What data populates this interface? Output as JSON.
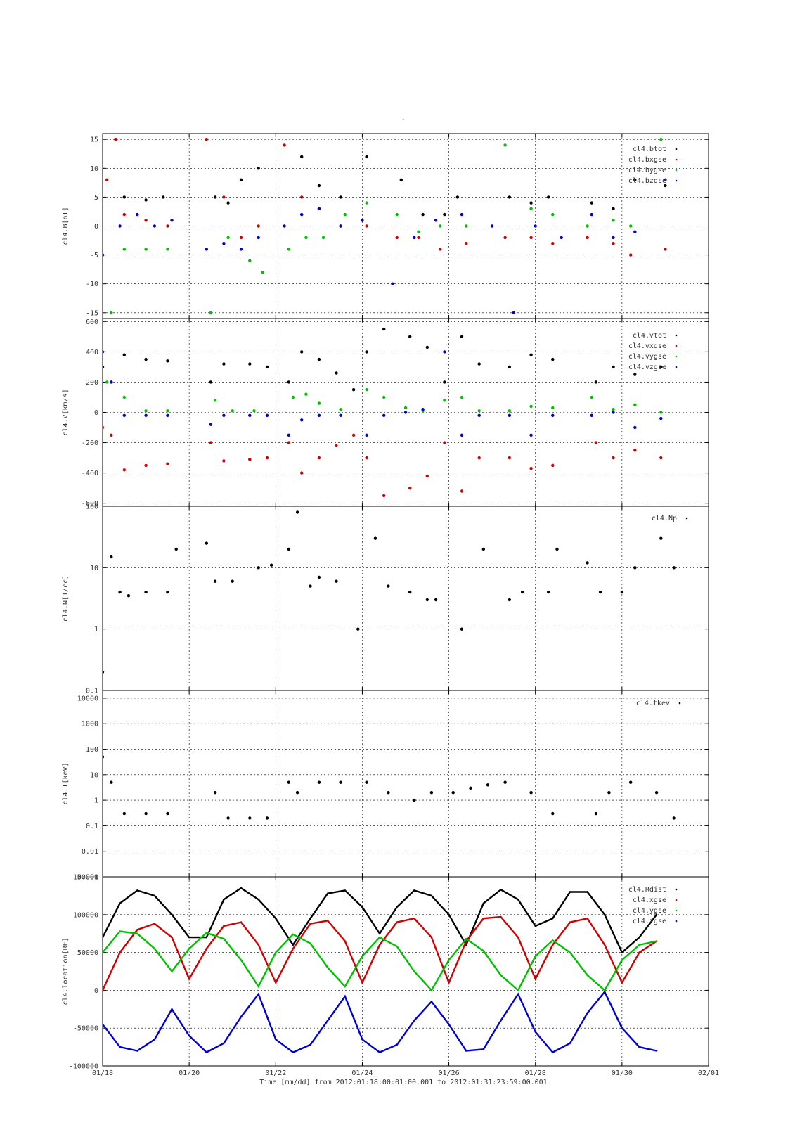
{
  "page": {
    "title_mark": "-"
  },
  "colors": {
    "black": "#000000",
    "red": "#d00000",
    "green": "#00c000",
    "blue": "#0000d0"
  },
  "time_axis": {
    "tick_labels": [
      "01/18",
      "01/20",
      "01/22",
      "01/24",
      "01/26",
      "01/28",
      "01/30",
      "02/01"
    ],
    "caption": "Time [mm/dd]  from 2012:01:18:00:01:00.001  to  2012:01:31:23:59:00.001"
  },
  "chart_data": [
    {
      "type": "scatter",
      "ylabel": "cl4.B[nT]",
      "ylim": [
        -16,
        16
      ],
      "yticks": [
        15,
        10,
        5,
        0,
        -5,
        -10,
        -15
      ],
      "ytick_labels": [
        "15",
        "10",
        "5",
        "0",
        "-5",
        "-10",
        "-15"
      ],
      "series": [
        {
          "name": "cl4.btot",
          "color": "#000000",
          "x": [
            0.3,
            0.5,
            1.0,
            1.4,
            2.6,
            2.9,
            3.2,
            3.6,
            4.6,
            5.0,
            5.5,
            6.1,
            6.9,
            7.4,
            7.9,
            8.2,
            9.4,
            9.9,
            10.3,
            11.3,
            11.8,
            12.3,
            13.0
          ],
          "y": [
            15,
            5,
            4.5,
            5,
            5,
            4,
            8,
            10,
            12,
            7,
            5,
            12,
            8,
            2,
            2,
            5,
            5,
            4,
            5,
            4,
            3,
            8,
            7
          ]
        },
        {
          "name": "cl4.bxgse",
          "color": "#d00000",
          "x": [
            0.1,
            0.3,
            0.5,
            1.0,
            1.5,
            2.4,
            2.8,
            3.2,
            3.6,
            4.2,
            4.6,
            5.0,
            5.5,
            6.1,
            6.8,
            7.3,
            7.8,
            8.4,
            9.3,
            9.9,
            10.4,
            11.2,
            11.8,
            12.2,
            13.0
          ],
          "y": [
            8,
            15,
            2,
            1,
            0,
            15,
            5,
            -2,
            0,
            14,
            5,
            3,
            0,
            0,
            -2,
            -2,
            -4,
            -3,
            -2,
            -2,
            -3,
            -2,
            -3,
            -5,
            -4
          ]
        },
        {
          "name": "cl4.bygse",
          "color": "#00c000",
          "x": [
            0.2,
            0.5,
            1.0,
            1.5,
            2.5,
            2.9,
            3.4,
            3.7,
            4.3,
            4.7,
            5.1,
            5.6,
            6.1,
            6.8,
            7.3,
            7.8,
            8.4,
            9.3,
            9.9,
            10.4,
            11.2,
            11.8,
            12.2,
            12.9
          ],
          "y": [
            -15,
            -4,
            -4,
            -4,
            -15,
            -2,
            -6,
            -8,
            -4,
            -2,
            -2,
            2,
            4,
            2,
            -1,
            0,
            0,
            14,
            3,
            2,
            0,
            1,
            0,
            15
          ]
        },
        {
          "name": "cl4.bzgse",
          "color": "#0000d0",
          "x": [
            0.0,
            0.4,
            0.8,
            1.2,
            1.6,
            2.4,
            2.8,
            3.2,
            3.6,
            4.2,
            4.6,
            5.0,
            5.5,
            6.0,
            6.7,
            7.2,
            7.7,
            8.3,
            9.0,
            9.5,
            10.0,
            10.6,
            11.3,
            11.8,
            12.3,
            13.0
          ],
          "y": [
            -5,
            0,
            2,
            0,
            1,
            -4,
            -3,
            -4,
            -2,
            0,
            2,
            3,
            0,
            1,
            -10,
            -2,
            1,
            2,
            0,
            -15,
            0,
            -2,
            2,
            -2,
            -1,
            8
          ]
        }
      ]
    },
    {
      "type": "scatter",
      "ylabel": "cl4.V[km/s]",
      "ylim": [
        -620,
        620
      ],
      "yticks": [
        600,
        400,
        200,
        0,
        -200,
        -400,
        -600
      ],
      "ytick_labels": [
        "600",
        "400",
        "200",
        "0",
        "-200",
        "-400",
        "-600"
      ],
      "series": [
        {
          "name": "cl4.vtot",
          "color": "#000000",
          "x": [
            0.0,
            0.2,
            0.5,
            1.0,
            1.5,
            2.5,
            2.8,
            3.4,
            3.8,
            4.3,
            4.6,
            5.0,
            5.4,
            5.8,
            6.1,
            6.5,
            7.1,
            7.5,
            7.9,
            8.3,
            8.7,
            9.4,
            9.9,
            10.4,
            11.4,
            11.8,
            12.3,
            12.9
          ],
          "y": [
            300,
            200,
            380,
            350,
            340,
            200,
            320,
            320,
            300,
            200,
            400,
            350,
            260,
            150,
            400,
            550,
            500,
            430,
            200,
            500,
            320,
            300,
            380,
            350,
            200,
            300,
            250,
            300
          ]
        },
        {
          "name": "cl4.vxgse",
          "color": "#d00000",
          "x": [
            0.0,
            0.2,
            0.5,
            1.0,
            1.5,
            2.5,
            2.8,
            3.4,
            3.8,
            4.3,
            4.6,
            5.0,
            5.4,
            5.8,
            6.1,
            6.5,
            7.1,
            7.5,
            7.9,
            8.3,
            8.7,
            9.4,
            9.9,
            10.4,
            11.4,
            11.8,
            12.3,
            12.9
          ],
          "y": [
            -100,
            -150,
            -380,
            -350,
            -340,
            -200,
            -320,
            -310,
            -300,
            -200,
            -400,
            -300,
            -220,
            -150,
            -300,
            -550,
            -500,
            -420,
            -200,
            -520,
            -300,
            -300,
            -370,
            -350,
            -200,
            -300,
            -250,
            -300
          ]
        },
        {
          "name": "cl4.vygse",
          "color": "#00c000",
          "x": [
            0.1,
            0.5,
            1.0,
            1.5,
            2.6,
            3.0,
            3.5,
            4.4,
            4.7,
            5.0,
            5.5,
            6.1,
            6.5,
            7.0,
            7.4,
            7.9,
            8.3,
            8.7,
            9.4,
            9.9,
            10.4,
            11.3,
            11.8,
            12.3,
            12.9
          ],
          "y": [
            200,
            100,
            10,
            10,
            80,
            10,
            10,
            100,
            120,
            60,
            20,
            150,
            100,
            30,
            10,
            80,
            100,
            10,
            10,
            40,
            30,
            100,
            20,
            50,
            0
          ]
        },
        {
          "name": "cl4.vzgse",
          "color": "#0000d0",
          "x": [
            0.0,
            0.2,
            0.5,
            1.0,
            1.5,
            2.5,
            2.8,
            3.4,
            3.8,
            4.3,
            4.6,
            5.0,
            5.5,
            6.1,
            6.5,
            7.0,
            7.4,
            7.9,
            8.3,
            8.7,
            9.4,
            9.9,
            10.4,
            11.3,
            11.8,
            12.3,
            12.9
          ],
          "y": [
            400,
            200,
            -20,
            -20,
            -20,
            -80,
            -20,
            -20,
            -20,
            -150,
            -50,
            -20,
            -20,
            -150,
            -20,
            0,
            20,
            400,
            -150,
            -20,
            -20,
            -150,
            -20,
            -20,
            0,
            -100,
            -40
          ]
        }
      ]
    },
    {
      "type": "scatter",
      "ylabel": "cl4.N[1/cc]",
      "yscale": "log",
      "ylim": [
        0.1,
        100
      ],
      "yticks": [
        100,
        10,
        1,
        0.1
      ],
      "ytick_labels": [
        "100",
        "10",
        "1",
        "0.1"
      ],
      "series": [
        {
          "name": "cl4.Np",
          "color": "#000000",
          "x": [
            0.0,
            0.2,
            0.4,
            0.6,
            1.0,
            1.5,
            1.7,
            2.4,
            2.6,
            3.0,
            3.6,
            3.9,
            4.3,
            4.5,
            4.8,
            5.0,
            5.4,
            5.9,
            6.3,
            6.6,
            7.1,
            7.5,
            7.7,
            8.3,
            8.8,
            9.4,
            9.7,
            10.3,
            10.5,
            11.2,
            11.5,
            12.0,
            12.3,
            12.9,
            13.2
          ],
          "y": [
            0.2,
            15,
            4,
            3.5,
            4,
            4,
            20,
            25,
            6,
            6,
            10,
            11,
            20,
            80,
            5,
            7,
            6,
            1,
            30,
            5,
            4,
            3,
            3,
            1,
            20,
            3,
            4,
            4,
            20,
            12,
            4,
            4,
            10,
            30,
            10
          ]
        }
      ]
    },
    {
      "type": "scatter",
      "ylabel": "cl4.T[keV]",
      "yscale": "log",
      "ylim": [
        0.001,
        20000
      ],
      "yticks": [
        10000,
        1000,
        100,
        10,
        1,
        0.1,
        0.01,
        0.001
      ],
      "ytick_labels": [
        "10000",
        "1000",
        "100",
        "10",
        "1",
        "0.1",
        "0.01",
        "0.001"
      ],
      "series": [
        {
          "name": "cl4.tkev",
          "color": "#000000",
          "x": [
            0.0,
            0.2,
            0.5,
            1.0,
            1.5,
            2.6,
            2.9,
            3.4,
            3.8,
            4.3,
            4.5,
            5.0,
            5.5,
            6.1,
            6.6,
            7.2,
            7.6,
            8.1,
            8.5,
            8.9,
            9.3,
            9.9,
            10.4,
            11.4,
            11.7,
            12.2,
            12.8,
            13.2
          ],
          "y": [
            50,
            5,
            0.3,
            0.3,
            0.3,
            2,
            0.2,
            0.2,
            0.2,
            5,
            2,
            5,
            5,
            5,
            2,
            1,
            2,
            2,
            3,
            4,
            5,
            2,
            0.3,
            0.3,
            2,
            5,
            2,
            0.2
          ]
        }
      ]
    },
    {
      "type": "line",
      "ylabel": "cl4.location[RE]",
      "ylim": [
        -100000,
        150000
      ],
      "yticks": [
        150000,
        100000,
        50000,
        0,
        -50000,
        -100000
      ],
      "ytick_labels": [
        "150000",
        "100000",
        "50000",
        "0",
        "-50000",
        "-100000"
      ],
      "series": [
        {
          "name": "cl4.Rdist",
          "color": "#000000",
          "x": [
            0.0,
            0.4,
            0.8,
            1.2,
            1.6,
            2.0,
            2.4,
            2.8,
            3.2,
            3.6,
            4.0,
            4.4,
            4.8,
            5.2,
            5.6,
            6.0,
            6.4,
            6.8,
            7.2,
            7.6,
            8.0,
            8.4,
            8.8,
            9.2,
            9.6,
            10.0,
            10.4,
            10.8,
            11.2,
            11.6,
            12.0,
            12.4,
            12.8
          ],
          "y": [
            70000,
            115000,
            132000,
            125000,
            100000,
            70000,
            70000,
            120000,
            135000,
            120000,
            95000,
            60000,
            95000,
            128000,
            132000,
            110000,
            75000,
            110000,
            132000,
            125000,
            100000,
            60000,
            115000,
            133000,
            120000,
            85000,
            95000,
            130000,
            130000,
            100000,
            50000,
            70000,
            100000
          ]
        },
        {
          "name": "cl4.xgse",
          "color": "#d00000",
          "x": [
            0.0,
            0.4,
            0.8,
            1.2,
            1.6,
            2.0,
            2.4,
            2.8,
            3.2,
            3.6,
            4.0,
            4.4,
            4.8,
            5.2,
            5.6,
            6.0,
            6.4,
            6.8,
            7.2,
            7.6,
            8.0,
            8.4,
            8.8,
            9.2,
            9.6,
            10.0,
            10.4,
            10.8,
            11.2,
            11.6,
            12.0,
            12.4,
            12.8
          ],
          "y": [
            0,
            50000,
            80000,
            88000,
            70000,
            15000,
            55000,
            85000,
            90000,
            60000,
            10000,
            55000,
            88000,
            92000,
            65000,
            10000,
            60000,
            90000,
            95000,
            70000,
            10000,
            65000,
            95000,
            97000,
            70000,
            15000,
            60000,
            90000,
            95000,
            60000,
            10000,
            50000,
            65000
          ]
        },
        {
          "name": "cl4.ygse",
          "color": "#00c000",
          "x": [
            0.0,
            0.4,
            0.8,
            1.2,
            1.6,
            2.0,
            2.4,
            2.8,
            3.2,
            3.6,
            4.0,
            4.4,
            4.8,
            5.2,
            5.6,
            6.0,
            6.4,
            6.8,
            7.2,
            7.6,
            8.0,
            8.4,
            8.8,
            9.2,
            9.6,
            10.0,
            10.4,
            10.8,
            11.2,
            11.6,
            12.0,
            12.4,
            12.8
          ],
          "y": [
            50000,
            78000,
            75000,
            55000,
            25000,
            55000,
            76000,
            68000,
            40000,
            5000,
            50000,
            74000,
            62000,
            30000,
            5000,
            45000,
            70000,
            58000,
            25000,
            0,
            40000,
            68000,
            52000,
            20000,
            0,
            45000,
            66000,
            50000,
            20000,
            0,
            40000,
            60000,
            65000
          ]
        },
        {
          "name": "cl4.zgse",
          "color": "#0000d0",
          "x": [
            0.0,
            0.4,
            0.8,
            1.2,
            1.6,
            2.0,
            2.4,
            2.8,
            3.2,
            3.6,
            4.0,
            4.4,
            4.8,
            5.2,
            5.6,
            6.0,
            6.4,
            6.8,
            7.2,
            7.6,
            8.0,
            8.4,
            8.8,
            9.2,
            9.6,
            10.0,
            10.4,
            10.8,
            11.2,
            11.6,
            12.0,
            12.4,
            12.8
          ],
          "y": [
            -45000,
            -75000,
            -80000,
            -65000,
            -25000,
            -60000,
            -82000,
            -70000,
            -35000,
            -5000,
            -65000,
            -82000,
            -72000,
            -40000,
            -8000,
            -65000,
            -82000,
            -72000,
            -40000,
            -15000,
            -45000,
            -80000,
            -78000,
            -40000,
            -5000,
            -55000,
            -82000,
            -70000,
            -30000,
            -2000,
            -50000,
            -75000,
            -80000
          ]
        }
      ]
    }
  ]
}
